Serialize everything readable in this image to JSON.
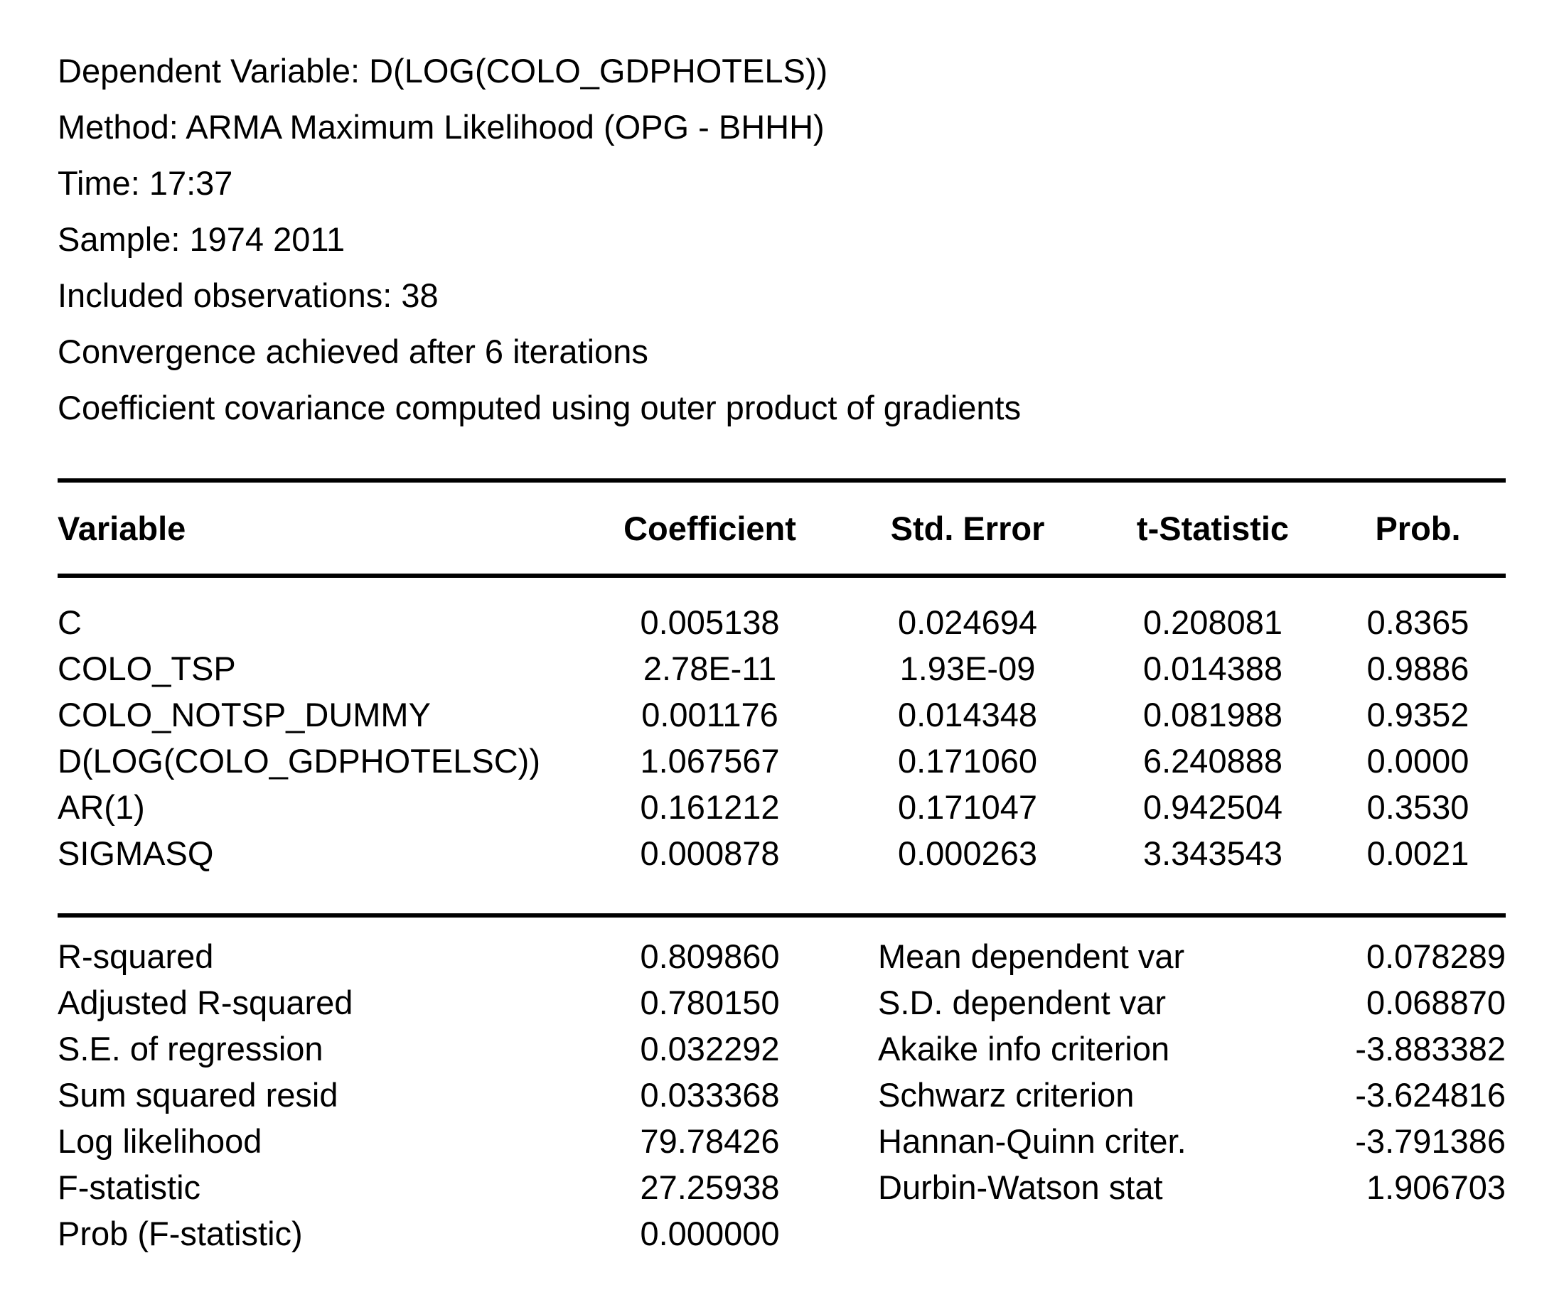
{
  "colors": {
    "background": "#ffffff",
    "text": "#000000",
    "rule": "#000000"
  },
  "preamble": {
    "lines": [
      "Dependent Variable: D(LOG(COLO_GDPHOTELS))",
      "Method: ARMA Maximum Likelihood (OPG - BHHH)",
      "Time: 17:37",
      "Sample: 1974 2011",
      "Included observations: 38",
      "Convergence achieved after 6 iterations",
      "Coefficient covariance computed using outer product of gradients"
    ]
  },
  "coef_table": {
    "columns": {
      "variable": "Variable",
      "coefficient": "Coefficient",
      "std_error": "Std. Error",
      "t_statistic": "t-Statistic",
      "prob": "Prob."
    },
    "rows": [
      {
        "variable": "C",
        "coefficient": "0.005138",
        "std_error": "0.024694",
        "t_statistic": "0.208081",
        "prob": "0.8365"
      },
      {
        "variable": "COLO_TSP",
        "coefficient": "2.78E-11",
        "std_error": "1.93E-09",
        "t_statistic": "0.014388",
        "prob": "0.9886"
      },
      {
        "variable": "COLO_NOTSP_DUMMY",
        "coefficient": "0.001176",
        "std_error": "0.014348",
        "t_statistic": "0.081988",
        "prob": "0.9352"
      },
      {
        "variable": "D(LOG(COLO_GDPHOTELSC))",
        "coefficient": "1.067567",
        "std_error": "0.171060",
        "t_statistic": "6.240888",
        "prob": "0.0000"
      },
      {
        "variable": "AR(1)",
        "coefficient": "0.161212",
        "std_error": "0.171047",
        "t_statistic": "0.942504",
        "prob": "0.3530"
      },
      {
        "variable": "SIGMASQ",
        "coefficient": "0.000878",
        "std_error": "0.000263",
        "t_statistic": "3.343543",
        "prob": "0.0021"
      }
    ]
  },
  "summary": {
    "left": [
      {
        "label": "R-squared",
        "value": "0.809860"
      },
      {
        "label": "Adjusted R-squared",
        "value": "0.780150"
      },
      {
        "label": "S.E. of regression",
        "value": "0.032292"
      },
      {
        "label": "Sum squared resid",
        "value": "0.033368"
      },
      {
        "label": "Log likelihood",
        "value": "79.78426"
      },
      {
        "label": "F-statistic",
        "value": "27.25938"
      },
      {
        "label": "Prob (F-statistic)",
        "value": "0.000000"
      }
    ],
    "right": [
      {
        "label": "Mean dependent var",
        "value": "0.078289"
      },
      {
        "label": "S.D. dependent var",
        "value": "0.068870"
      },
      {
        "label": "Akaike info criterion",
        "value": "-3.883382"
      },
      {
        "label": "Schwarz criterion",
        "value": "-3.624816"
      },
      {
        "label": "Hannan-Quinn criter.",
        "value": "-3.791386"
      },
      {
        "label": "Durbin-Watson stat",
        "value": "1.906703"
      }
    ]
  }
}
